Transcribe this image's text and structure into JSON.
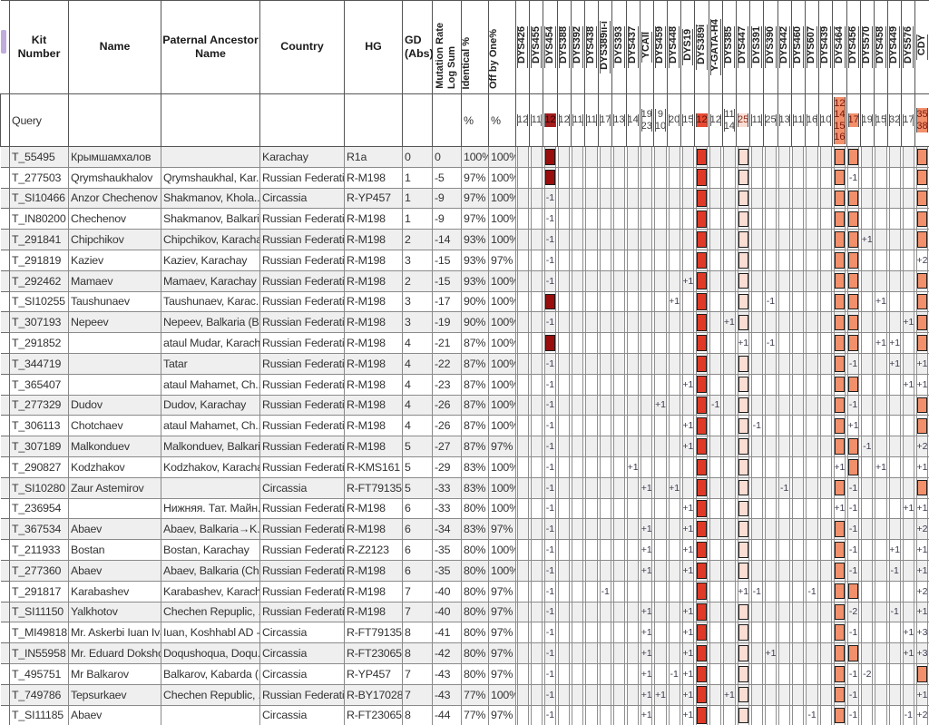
{
  "colors": {
    "row_stripe": "#efefef",
    "grid_line": "#8a8a8a",
    "dys454_box": "#9a0d0d",
    "dys454_query_bg": "#a31d1d",
    "dys389i_box": "#df3a27",
    "dys389i_query_bg": "#e94a33",
    "dys447_box": "#fbddd3",
    "salmon_box": "#f2906c",
    "box_border": "#1d1d1d"
  },
  "header": {
    "fixed": [
      "Kit Number",
      "Name",
      "Paternal Ancestor\nName",
      "Country",
      "HG",
      "GD\n(Abs)"
    ],
    "mutation_rate": [
      "Mutation Rate",
      "Log Sum"
    ],
    "identical": "Identical %",
    "off_by_one": "Off by One%",
    "markers": [
      "DYS426",
      "DYS455",
      "DYS454",
      "DYS388",
      "DYS392",
      "DYS438",
      "DYS389ii-i",
      "DYS393",
      "DYS437",
      "YCAII",
      "DYS459",
      "DYS448",
      "DYS19",
      "DYS389i",
      "Y-GATA-H4",
      "DYS385",
      "DYS447",
      "DYS391",
      "DYS390",
      "DYS442",
      "DYS460",
      "DYS607",
      "DYS439",
      "DYS464",
      "DYS456",
      "DYS570",
      "DYS458",
      "DYS449",
      "DYS576",
      "CDY"
    ]
  },
  "query": {
    "label": "Query",
    "identical": "%",
    "off_by_one": "%",
    "markers": {
      "DYS426": "12",
      "DYS455": "11",
      "DYS454": "12",
      "DYS388": "12",
      "DYS392": "11",
      "DYS438": "11",
      "DYS389ii-i": "17",
      "DYS393": "13",
      "DYS437": "14",
      "YCAII": "19 23",
      "DYS459": "9 10",
      "DYS448": "20",
      "DYS19": "15",
      "DYS389i": "12",
      "Y-GATA-H4": "12",
      "DYS385": "11 14",
      "DYS447": "25",
      "DYS391": "11",
      "DYS390": "25",
      "DYS442": "13",
      "DYS460": "11",
      "DYS607": "16",
      "DYS439": "10",
      "DYS464": "12 14 15 16",
      "DYS456": "17",
      "DYS570": "19",
      "DYS458": "15",
      "DYS449": "32",
      "DYS576": "17",
      "CDY": "35 38"
    },
    "highlighted": {
      "DYS454": "darkred",
      "DYS389i": "red",
      "DYS447": "pink",
      "DYS464": "salmon",
      "DYS456": "salmon",
      "CDY": "salmon"
    }
  },
  "rows": [
    {
      "kit": "T_55495",
      "name": "Крымшамхалов",
      "anc": "",
      "country": "Karachay",
      "hg": "R1a",
      "gd": "0",
      "mrls": "0",
      "id": "100%",
      "ob1": "100%",
      "m": {
        "DYS454": "B",
        "DYS389i": "B",
        "DYS447": "B",
        "DYS464": "B",
        "DYS456": "B",
        "CDY": "B"
      }
    },
    {
      "kit": "T_277503",
      "name": "Qrymshaukhalov",
      "anc": "Qrymshaukhal, Kar...",
      "country": "Russian Federation",
      "hg": "R-M198",
      "gd": "1",
      "mrls": "-5",
      "id": "97%",
      "ob1": "100%",
      "m": {
        "DYS454": "B",
        "DYS389i": "B",
        "DYS447": "B",
        "DYS464": "B",
        "DYS456": "-1",
        "CDY": "B"
      }
    },
    {
      "kit": "T_SI10466",
      "name": "Anzor Chechenov",
      "anc": "Shakmanov, Khola...",
      "country": "Circassia",
      "hg": "R-YP457",
      "gd": "1",
      "mrls": "-9",
      "id": "97%",
      "ob1": "100%",
      "m": {
        "DYS454": "-1",
        "DYS389i": "B",
        "DYS447": "B",
        "DYS464": "B",
        "DYS456": "B",
        "CDY": "B"
      }
    },
    {
      "kit": "T_IN80200",
      "name": "Chechenov",
      "anc": "Shakmanov, Balkari...",
      "country": "Russian Federation",
      "hg": "R-M198",
      "gd": "1",
      "mrls": "-9",
      "id": "97%",
      "ob1": "100%",
      "m": {
        "DYS454": "-1",
        "DYS389i": "B",
        "DYS447": "B",
        "DYS464": "B",
        "DYS456": "B",
        "CDY": "B"
      }
    },
    {
      "kit": "T_291841",
      "name": "Chipchikov",
      "anc": "Chipchikov, Karachay",
      "country": "Russian Federation",
      "hg": "R-M198",
      "gd": "2",
      "mrls": "-14",
      "id": "93%",
      "ob1": "100%",
      "m": {
        "DYS454": "-1",
        "DYS389i": "B",
        "DYS447": "B",
        "DYS464": "B",
        "DYS456": "B",
        "DYS570": "+1",
        "CDY": "B"
      }
    },
    {
      "kit": "T_291819",
      "name": "Kaziev",
      "anc": "Kaziev, Karachay",
      "country": "Russian Federation",
      "hg": "R-M198",
      "gd": "3",
      "mrls": "-15",
      "id": "93%",
      "ob1": "97%",
      "m": {
        "DYS454": "-1",
        "DYS389i": "B",
        "DYS447": "B",
        "DYS464": "B",
        "DYS456": "B",
        "CDY": "+2"
      }
    },
    {
      "kit": "T_292462",
      "name": "Mamaev",
      "anc": "Mamaev, Karachay",
      "country": "Russian Federation",
      "hg": "R-M198",
      "gd": "2",
      "mrls": "-15",
      "id": "93%",
      "ob1": "100%",
      "m": {
        "DYS454": "-1",
        "DYS19": "+1",
        "DYS389i": "B",
        "DYS447": "B",
        "DYS464": "B",
        "DYS456": "B",
        "CDY": "B"
      }
    },
    {
      "kit": "T_SI10255",
      "name": "Taushunaev",
      "anc": "Taushunaev, Karac...",
      "country": "Russian Federation",
      "hg": "R-M198",
      "gd": "3",
      "mrls": "-17",
      "id": "90%",
      "ob1": "100%",
      "m": {
        "DYS454": "B",
        "DYS448": "+1",
        "DYS389i": "B",
        "DYS447": "B",
        "DYS390": "-1",
        "DYS464": "B",
        "DYS456": "B",
        "DYS458": "+1",
        "CDY": "B"
      }
    },
    {
      "kit": "T_307193",
      "name": "Nepeev",
      "anc": "Nepeev, Balkaria (B...",
      "country": "Russian Federation",
      "hg": "R-M198",
      "gd": "3",
      "mrls": "-19",
      "id": "90%",
      "ob1": "100%",
      "m": {
        "DYS454": "-1",
        "DYS389i": "B",
        "DYS385": "+1",
        "DYS447": "B",
        "DYS464": "B",
        "DYS456": "B",
        "DYS576": "+1",
        "CDY": "B"
      }
    },
    {
      "kit": "T_291852",
      "name": "",
      "anc": "ataul Mudar, Karach...",
      "country": "Russian Federation",
      "hg": "R-M198",
      "gd": "4",
      "mrls": "-21",
      "id": "87%",
      "ob1": "100%",
      "m": {
        "DYS454": "B",
        "DYS389i": "B",
        "DYS447": "+1",
        "DYS390": "-1",
        "DYS464": "B",
        "DYS456": "B",
        "DYS458": "+1",
        "DYS449": "+1",
        "CDY": "B"
      }
    },
    {
      "kit": "T_344719",
      "name": "",
      "anc": "Tatar",
      "country": "Russian Federation",
      "hg": "R-M198",
      "gd": "4",
      "mrls": "-22",
      "id": "87%",
      "ob1": "100%",
      "m": {
        "DYS454": "-1",
        "DYS389i": "B",
        "DYS447": "B",
        "DYS464": "B",
        "DYS456": "-1",
        "DYS449": "+1",
        "CDY": "+1"
      }
    },
    {
      "kit": "T_365407",
      "name": "",
      "anc": "ataul Mahamet, Ch...",
      "country": "Russian Federation",
      "hg": "R-M198",
      "gd": "4",
      "mrls": "-23",
      "id": "87%",
      "ob1": "100%",
      "m": {
        "DYS454": "-1",
        "DYS19": "+1",
        "DYS389i": "B",
        "DYS447": "B",
        "DYS464": "B",
        "DYS456": "B",
        "DYS576": "+1",
        "CDY": "+1"
      }
    },
    {
      "kit": "T_277329",
      "name": "Dudov",
      "anc": "Dudov, Karachay",
      "country": "Russian Federation",
      "hg": "R-M198",
      "gd": "4",
      "mrls": "-26",
      "id": "87%",
      "ob1": "100%",
      "m": {
        "DYS454": "-1",
        "DYS459": "+1",
        "DYS389i": "B",
        "Y-GATA-H4": "-1",
        "DYS447": "B",
        "DYS464": "B",
        "DYS456": "-1",
        "CDY": "B"
      }
    },
    {
      "kit": "T_306113",
      "name": "Chotchaev",
      "anc": "ataul Mahamet, Ch...",
      "country": "Russian Federation",
      "hg": "R-M198",
      "gd": "4",
      "mrls": "-26",
      "id": "87%",
      "ob1": "100%",
      "m": {
        "DYS454": "-1",
        "DYS19": "+1",
        "DYS389i": "B",
        "DYS447": "B",
        "DYS391": "-1",
        "DYS464": "B",
        "DYS456": "+1",
        "CDY": "B"
      }
    },
    {
      "kit": "T_307189",
      "name": "Malkonduev",
      "anc": "Malkonduev, Balkari...",
      "country": "Russian Federation",
      "hg": "R-M198",
      "gd": "5",
      "mrls": "-27",
      "id": "87%",
      "ob1": "97%",
      "m": {
        "DYS454": "-1",
        "DYS19": "+1",
        "DYS389i": "B",
        "DYS447": "B",
        "DYS464": "B",
        "DYS456": "B",
        "DYS570": "-1",
        "CDY": "+2"
      }
    },
    {
      "kit": "T_290827",
      "name": "Kodzhakov",
      "anc": "Kodzhakov, Karachay",
      "country": "Russian Federation",
      "hg": "R-KMS161",
      "gd": "5",
      "mrls": "-29",
      "id": "83%",
      "ob1": "100%",
      "m": {
        "DYS454": "-1",
        "DYS437": "+1",
        "DYS389i": "B",
        "DYS447": "B",
        "DYS464": "+1",
        "DYS456": "B",
        "DYS458": "+1",
        "CDY": "+1"
      }
    },
    {
      "kit": "T_SI10280",
      "name": "Zaur Astemirov",
      "anc": "",
      "country": "Circassia",
      "hg": "R-FT79135",
      "gd": "5",
      "mrls": "-33",
      "id": "83%",
      "ob1": "100%",
      "m": {
        "DYS454": "-1",
        "YCAII": "+1",
        "DYS448": "+1",
        "DYS389i": "B",
        "DYS447": "B",
        "DYS442": "-1",
        "DYS464": "B",
        "DYS456": "-1",
        "CDY": "B"
      }
    },
    {
      "kit": "T_236954",
      "name": "",
      "anc": "Нижняя. Тат. Майн...",
      "country": "Russian Federation",
      "hg": "R-M198",
      "gd": "6",
      "mrls": "-33",
      "id": "80%",
      "ob1": "100%",
      "m": {
        "DYS454": "-1",
        "DYS19": "+1",
        "DYS389i": "B",
        "DYS447": "B",
        "DYS464": "+1",
        "DYS456": "-1",
        "DYS576": "+1",
        "CDY": "+1"
      }
    },
    {
      "kit": "T_367534",
      "name": "Abaev",
      "anc": "Abaev, Balkaria→K...",
      "country": "Russian Federation",
      "hg": "R-M198",
      "gd": "6",
      "mrls": "-34",
      "id": "83%",
      "ob1": "97%",
      "m": {
        "DYS454": "-1",
        "YCAII": "+1",
        "DYS19": "+1",
        "DYS389i": "B",
        "DYS447": "B",
        "DYS464": "B",
        "DYS456": "-1",
        "CDY": "+2"
      }
    },
    {
      "kit": "T_211933",
      "name": "Bostan",
      "anc": "Bostan, Karachay",
      "country": "Russian Federation",
      "hg": "R-Z2123",
      "gd": "6",
      "mrls": "-35",
      "id": "80%",
      "ob1": "100%",
      "m": {
        "DYS454": "-1",
        "YCAII": "+1",
        "DYS19": "+1",
        "DYS389i": "B",
        "DYS447": "B",
        "DYS464": "B",
        "DYS456": "-1",
        "DYS449": "+1",
        "CDY": "+1"
      }
    },
    {
      "kit": "T_277360",
      "name": "Abaev",
      "anc": "Abaev, Balkaria (Ch...",
      "country": "Russian Federation",
      "hg": "R-M198",
      "gd": "6",
      "mrls": "-35",
      "id": "80%",
      "ob1": "100%",
      "m": {
        "DYS454": "-1",
        "YCAII": "+1",
        "DYS19": "+1",
        "DYS389i": "B",
        "DYS447": "B",
        "DYS464": "B",
        "DYS456": "-1",
        "DYS449": "-1",
        "CDY": "+1"
      }
    },
    {
      "kit": "T_291817",
      "name": "Karabashev",
      "anc": "Karabashev, Karach...",
      "country": "Russian Federation",
      "hg": "R-M198",
      "gd": "7",
      "mrls": "-40",
      "id": "80%",
      "ob1": "97%",
      "m": {
        "DYS454": "-1",
        "DYS389ii-i": "-1",
        "DYS389i": "B",
        "DYS447": "+1",
        "DYS391": "-1",
        "DYS607": "-1",
        "DYS464": "B",
        "DYS456": "B",
        "CDY": "+2"
      }
    },
    {
      "kit": "T_SI11150",
      "name": "Yalkhotov",
      "anc": "Chechen Repuplic, ...",
      "country": "Russian Federation",
      "hg": "R-M198",
      "gd": "7",
      "mrls": "-40",
      "id": "80%",
      "ob1": "97%",
      "m": {
        "DYS454": "-1",
        "YCAII": "+1",
        "DYS19": "+1",
        "DYS389i": "B",
        "DYS447": "B",
        "DYS464": "B",
        "DYS456": "-2",
        "DYS449": "-1",
        "CDY": "+1"
      }
    },
    {
      "kit": "T_MI49818",
      "name": "Mr. Askerbi Iuan Iva...",
      "anc": "Iuan, Koshhabl AD -...",
      "country": "Circassia",
      "hg": "R-FT79135",
      "gd": "8",
      "mrls": "-41",
      "id": "80%",
      "ob1": "97%",
      "m": {
        "DYS454": "-1",
        "YCAII": "+1",
        "DYS19": "+1",
        "DYS389i": "B",
        "DYS447": "B",
        "DYS464": "B",
        "DYS456": "-1",
        "DYS576": "+1",
        "CDY": "+3"
      }
    },
    {
      "kit": "T_IN55958",
      "name": "Mr. Eduard Doksho...",
      "anc": "Doqushoqua, Doqu...",
      "country": "Circassia",
      "hg": "R-FT230654",
      "gd": "8",
      "mrls": "-42",
      "id": "80%",
      "ob1": "97%",
      "m": {
        "DYS454": "-1",
        "YCAII": "+1",
        "DYS19": "+1",
        "DYS389i": "B",
        "DYS447": "B",
        "DYS390": "+1",
        "DYS464": "B",
        "DYS456": "B",
        "DYS576": "+1",
        "CDY": "+3"
      }
    },
    {
      "kit": "T_495751",
      "name": "Mr Balkarov",
      "anc": "Balkarov, Kabarda (...",
      "country": "Circassia",
      "hg": "R-YP457",
      "gd": "7",
      "mrls": "-43",
      "id": "80%",
      "ob1": "97%",
      "m": {
        "DYS454": "-1",
        "YCAII": "+1",
        "DYS448": "-1",
        "DYS19": "+1",
        "DYS389i": "B",
        "DYS447": "B",
        "DYS464": "B",
        "DYS456": "-1",
        "DYS570": "-2",
        "CDY": "B"
      }
    },
    {
      "kit": "T_749786",
      "name": "Tepsurkaev",
      "anc": "Chechen Republic, ...",
      "country": "Russian Federation",
      "hg": "R-BY170286",
      "gd": "7",
      "mrls": "-43",
      "id": "77%",
      "ob1": "100%",
      "m": {
        "DYS454": "-1",
        "YCAII": "+1",
        "DYS459": "+1",
        "DYS19": "+1",
        "DYS389i": "B",
        "DYS385": "+1",
        "DYS447": "B",
        "DYS464": "B",
        "DYS456": "-1",
        "CDY": "+1"
      }
    },
    {
      "kit": "T_SI11185",
      "name": "Abaev",
      "anc": "",
      "country": "Circassia",
      "hg": "R-FT230654",
      "gd": "8",
      "mrls": "-44",
      "id": "77%",
      "ob1": "97%",
      "m": {
        "DYS454": "-1",
        "YCAII": "+1",
        "DYS19": "+1",
        "DYS389i": "B",
        "DYS447": "B",
        "DYS607": "-1",
        "DYS464": "B",
        "DYS456": "-1",
        "DYS576": "-1",
        "CDY": "+2"
      }
    }
  ]
}
